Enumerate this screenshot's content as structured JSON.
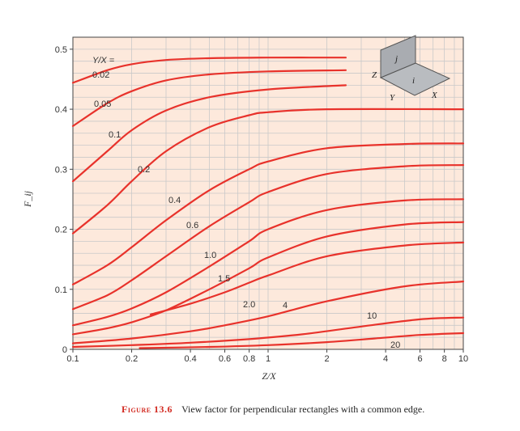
{
  "chart_data": {
    "type": "line",
    "title": "",
    "xlabel": "Z/X",
    "ylabel": "F_ij",
    "xscale": "log",
    "xlim": [
      0.1,
      10
    ],
    "ylim": [
      0,
      0.52
    ],
    "grid": true,
    "x_ticks": [
      {
        "v": 0.1,
        "label": "0.1"
      },
      {
        "v": 0.2,
        "label": "0.2"
      },
      {
        "v": 0.4,
        "label": "0.4"
      },
      {
        "v": 0.6,
        "label": "0.6"
      },
      {
        "v": 0.8,
        "label": "0.8"
      },
      {
        "v": 1,
        "label": "1"
      },
      {
        "v": 2,
        "label": "2"
      },
      {
        "v": 4,
        "label": "4"
      },
      {
        "v": 6,
        "label": "6"
      },
      {
        "v": 8,
        "label": "8"
      },
      {
        "v": 10,
        "label": "10"
      }
    ],
    "y_ticks": [
      {
        "v": 0,
        "label": "0"
      },
      {
        "v": 0.1,
        "label": "0.1"
      },
      {
        "v": 0.2,
        "label": "0.2"
      },
      {
        "v": 0.3,
        "label": "0.3"
      },
      {
        "v": 0.4,
        "label": "0.4"
      },
      {
        "v": 0.5,
        "label": "0.5"
      }
    ],
    "legend_heading": "Y/X =",
    "series": [
      {
        "name": "0.02",
        "x": [
          0.1,
          0.15,
          0.2,
          0.3,
          0.5,
          1,
          2.5
        ],
        "y": [
          0.444,
          0.465,
          0.475,
          0.482,
          0.485,
          0.486,
          0.486
        ]
      },
      {
        "name": "0.05",
        "x": [
          0.1,
          0.15,
          0.2,
          0.3,
          0.5,
          1,
          2.5
        ],
        "y": [
          0.372,
          0.41,
          0.43,
          0.448,
          0.458,
          0.463,
          0.465
        ]
      },
      {
        "name": "0.1",
        "x": [
          0.1,
          0.15,
          0.2,
          0.3,
          0.5,
          1,
          2.5
        ],
        "y": [
          0.28,
          0.33,
          0.365,
          0.398,
          0.42,
          0.433,
          0.44
        ]
      },
      {
        "name": "0.2",
        "x": [
          0.1,
          0.15,
          0.2,
          0.3,
          0.5,
          0.8,
          1,
          2,
          10
        ],
        "y": [
          0.193,
          0.24,
          0.28,
          0.33,
          0.37,
          0.39,
          0.395,
          0.4,
          0.4
        ]
      },
      {
        "name": "0.4",
        "x": [
          0.1,
          0.15,
          0.2,
          0.3,
          0.5,
          0.8,
          1,
          2,
          5,
          10
        ],
        "y": [
          0.108,
          0.14,
          0.17,
          0.215,
          0.265,
          0.3,
          0.313,
          0.335,
          0.342,
          0.343
        ]
      },
      {
        "name": "0.6",
        "x": [
          0.1,
          0.15,
          0.2,
          0.3,
          0.5,
          0.8,
          1,
          2,
          5,
          10
        ],
        "y": [
          0.067,
          0.09,
          0.115,
          0.155,
          0.205,
          0.245,
          0.262,
          0.292,
          0.305,
          0.307
        ]
      },
      {
        "name": "1.0",
        "x": [
          0.1,
          0.15,
          0.2,
          0.3,
          0.5,
          0.8,
          1,
          2,
          5,
          10
        ],
        "y": [
          0.04,
          0.054,
          0.068,
          0.095,
          0.138,
          0.18,
          0.2,
          0.232,
          0.248,
          0.25
        ]
      },
      {
        "name": "1.5",
        "x": [
          0.1,
          0.15,
          0.2,
          0.3,
          0.5,
          0.8,
          1,
          2,
          5,
          10
        ],
        "y": [
          0.025,
          0.035,
          0.045,
          0.065,
          0.1,
          0.135,
          0.153,
          0.188,
          0.208,
          0.212
        ]
      },
      {
        "name": "2.0",
        "x": [
          0.25,
          0.4,
          0.6,
          0.8,
          1,
          2,
          5,
          10
        ],
        "y": [
          0.058,
          0.076,
          0.095,
          0.111,
          0.123,
          0.155,
          0.173,
          0.178
        ]
      },
      {
        "name": "4",
        "x": [
          0.1,
          0.2,
          0.4,
          0.6,
          1,
          2,
          5,
          10
        ],
        "y": [
          0.01,
          0.018,
          0.03,
          0.04,
          0.055,
          0.08,
          0.105,
          0.113
        ]
      },
      {
        "name": "10",
        "x": [
          0.1,
          0.2,
          0.4,
          0.8,
          1.5,
          3,
          6,
          10
        ],
        "y": [
          0.004,
          0.007,
          0.011,
          0.017,
          0.025,
          0.038,
          0.05,
          0.053
        ]
      },
      {
        "name": "20",
        "x": [
          0.22,
          0.5,
          1,
          2,
          3.5,
          6,
          10
        ],
        "y": [
          0.002,
          0.004,
          0.007,
          0.012,
          0.018,
          0.024,
          0.027
        ]
      }
    ],
    "inset_labels": {
      "z": "Z",
      "y": "Y",
      "x": "X",
      "i": "i",
      "j": "j"
    },
    "colors": {
      "plot_bg": "#fde9dc",
      "grid": "#c9c9c9",
      "line": "#e8322b"
    }
  },
  "caption": {
    "figure": "Figure 13.6",
    "text": "View factor for perpendicular rectangles with a common edge."
  }
}
